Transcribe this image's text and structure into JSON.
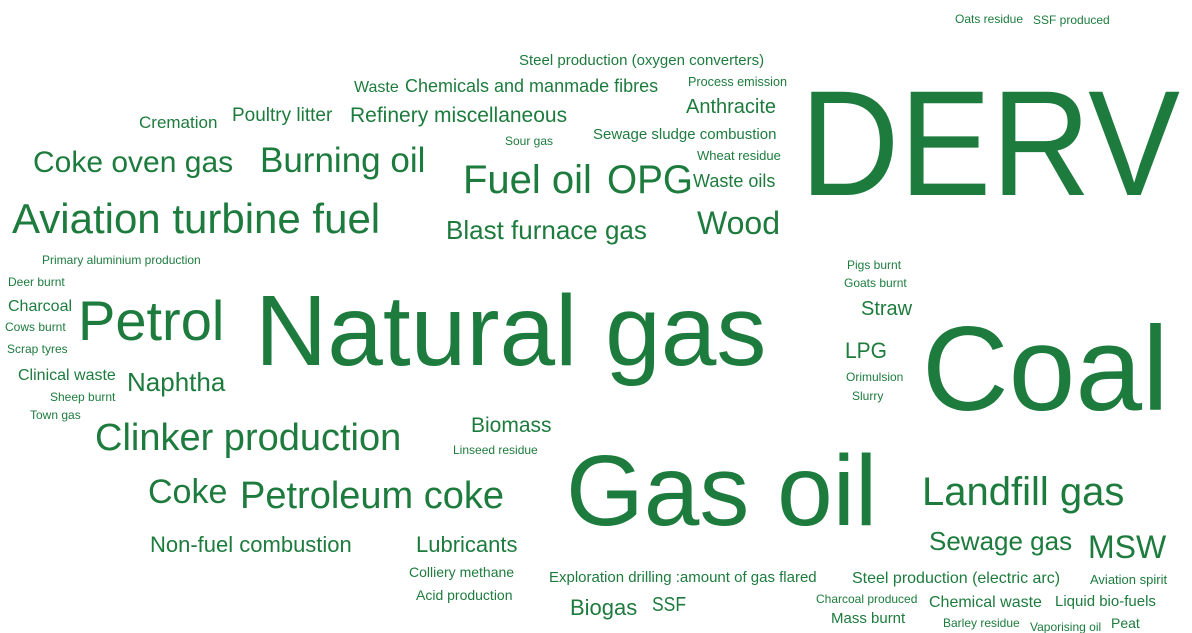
{
  "words": [
    "Oats residue",
    "SSF produced",
    "Steel production (oxygen converters)",
    "Waste",
    "Chemicals and manmade fibres",
    "Process emission",
    "DERV",
    "Cremation",
    "Poultry litter",
    "Refinery miscellaneous",
    "Anthracite",
    "Sour gas",
    "Sewage sludge combustion",
    "Wheat residue",
    "Coke oven gas",
    "Burning oil",
    "Fuel oil",
    "OPG",
    "Waste oils",
    "Aviation turbine fuel",
    "Blast furnace gas",
    "Wood",
    "Primary aluminium production",
    "Deer burnt",
    "Charcoal",
    "Cows burnt",
    "Scrap tyres",
    "Petrol",
    "Natural gas",
    "Pigs burnt",
    "Goats burnt",
    "Straw",
    "LPG",
    "Coal",
    "Orimulsion",
    "Slurry",
    "Clinical waste",
    "Naphtha",
    "Sheep burnt",
    "Town gas",
    "Biomass",
    "Linseed residue",
    "Clinker production",
    "Gas oil",
    "Coke",
    "Petroleum coke",
    "Landfill gas",
    "Non-fuel combustion",
    "Lubricants",
    "Sewage gas",
    "MSW",
    "Colliery methane",
    "Exploration drilling :amount of gas flared",
    "Steel production (electric arc)",
    "Aviation spirit",
    "Acid production",
    "Biogas",
    "SSF",
    "Charcoal produced",
    "Chemical waste",
    "Liquid bio-fuels",
    "Mass burnt",
    "Barley residue",
    "Vaporising oil",
    "Peat"
  ]
}
